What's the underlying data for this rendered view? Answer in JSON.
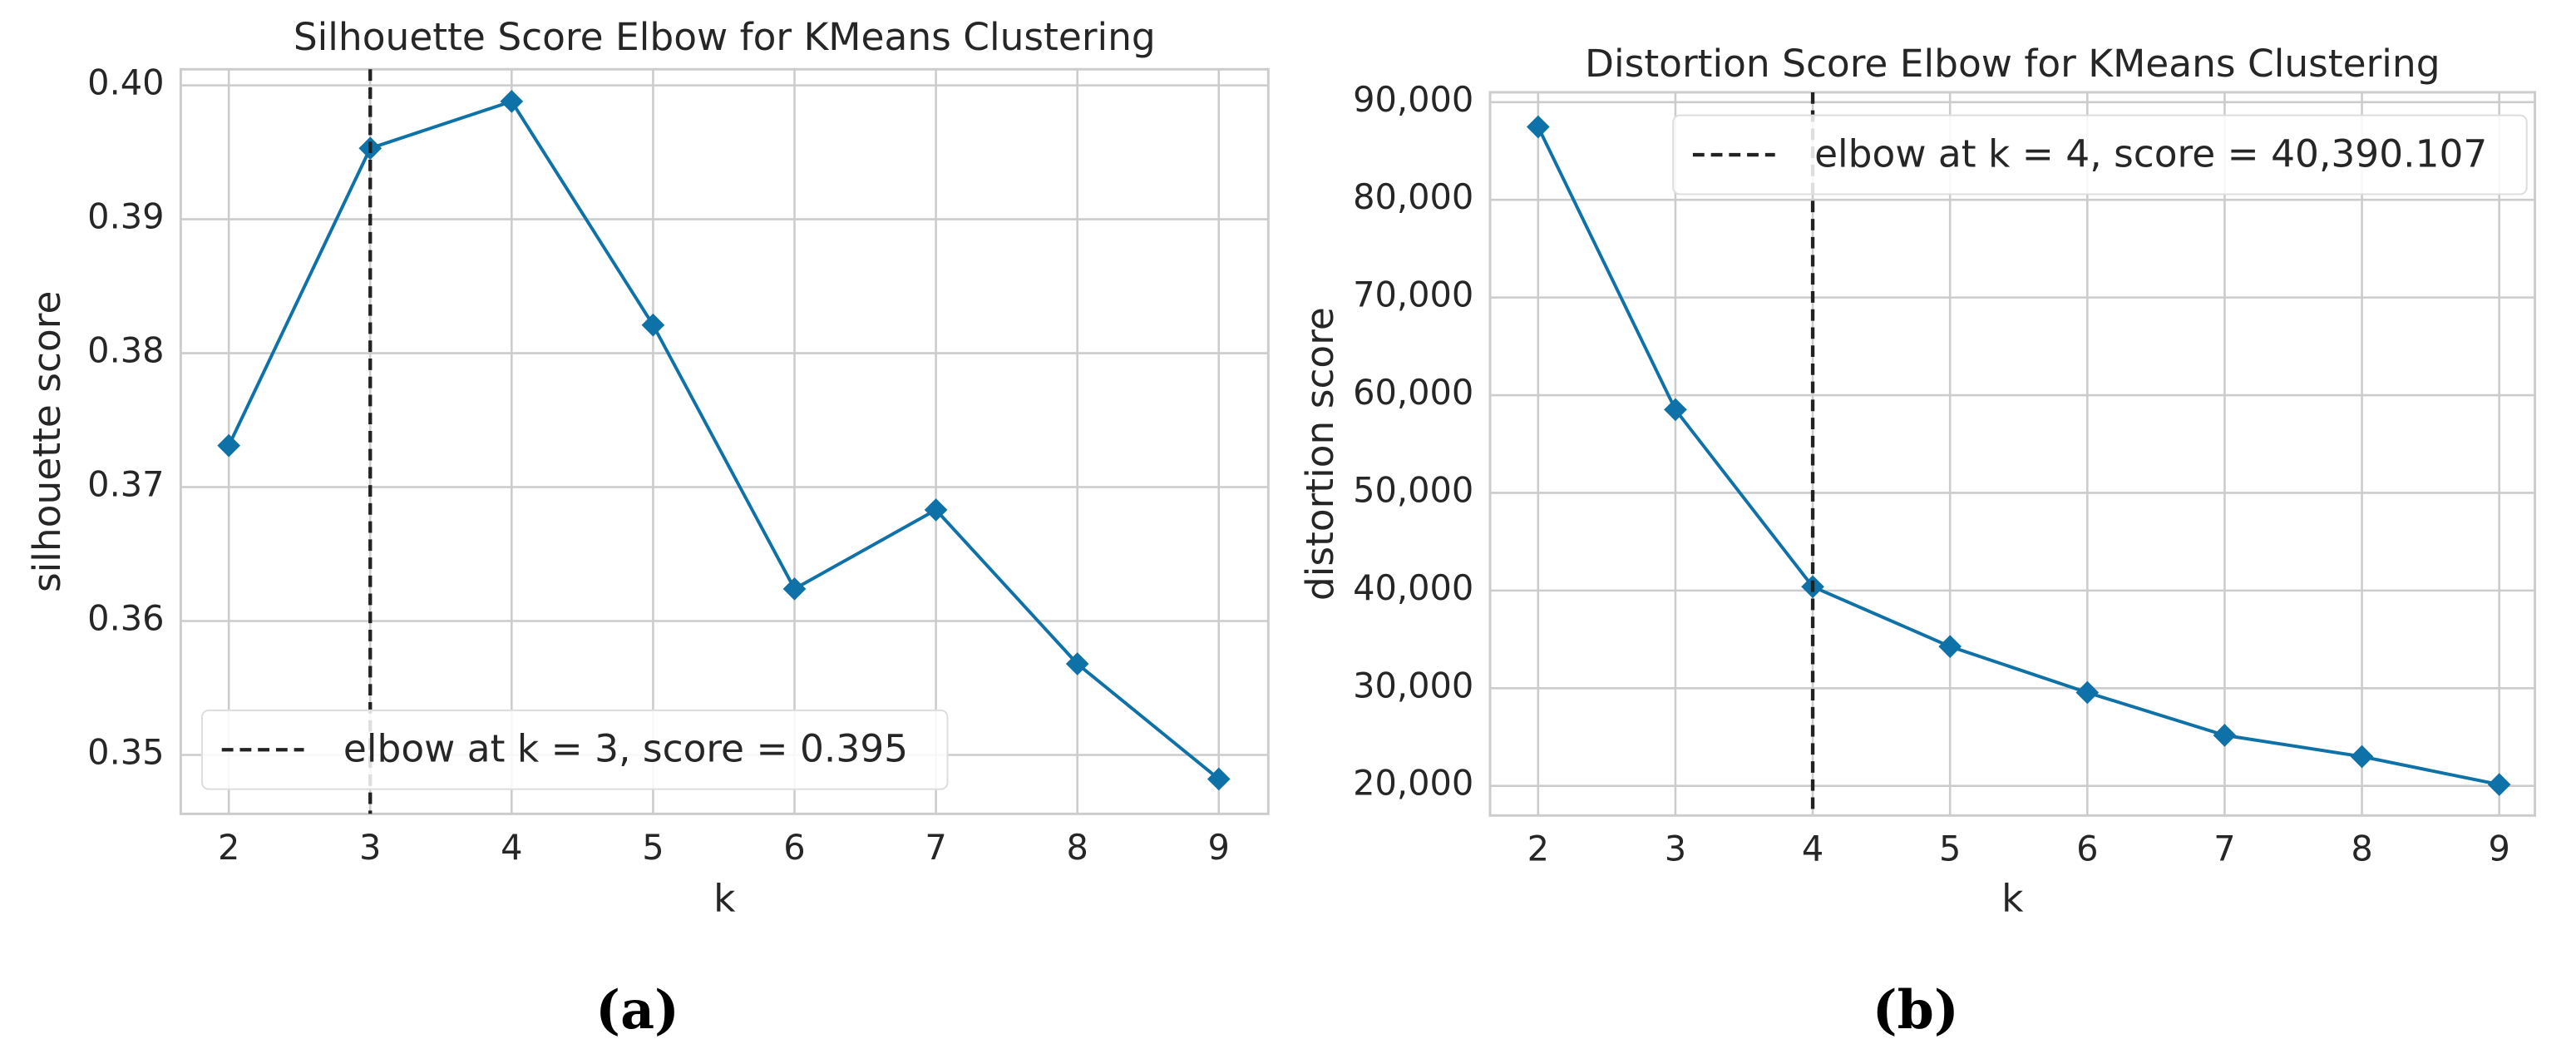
{
  "chart_data": [
    {
      "type": "line",
      "title": "Silhouette Score Elbow for KMeans Clustering",
      "xlabel": "k",
      "ylabel": "silhouette score",
      "caption": "(a)",
      "x": [
        2,
        3,
        4,
        5,
        6,
        7,
        8,
        9
      ],
      "values": [
        0.3731,
        0.3953,
        0.3988,
        0.3821,
        0.3624,
        0.3683,
        0.3568,
        0.3482
      ],
      "color": "#0e72a8",
      "xlim": [
        1.66,
        9.35
      ],
      "xticks": [
        2,
        3,
        4,
        5,
        6,
        7,
        8,
        9
      ],
      "ylim": [
        0.3456,
        0.4012
      ],
      "yticks": [
        {
          "value": 0.35,
          "label": "0.35"
        },
        {
          "value": 0.36,
          "label": "0.36"
        },
        {
          "value": 0.37,
          "label": "0.37"
        },
        {
          "value": 0.38,
          "label": "0.38"
        },
        {
          "value": 0.39,
          "label": "0.39"
        },
        {
          "value": 0.4,
          "label": "0.40"
        }
      ],
      "grid": true,
      "legend": "lower left",
      "elbow": {
        "x": 3,
        "label": "elbow at k = 3, score = 0.395"
      }
    },
    {
      "type": "line",
      "title": "Distortion Score Elbow for KMeans Clustering",
      "xlabel": "k",
      "ylabel": "distortion score",
      "caption": "(b)",
      "x": [
        2,
        3,
        4,
        5,
        6,
        7,
        8,
        9
      ],
      "values": [
        87470,
        58520,
        40390,
        34270,
        29560,
        25180,
        23000,
        20140
      ],
      "color": "#0e72a8",
      "xlim": [
        1.65,
        9.26
      ],
      "xticks": [
        2,
        3,
        4,
        5,
        6,
        7,
        8,
        9
      ],
      "ylim": [
        16970,
        91010
      ],
      "yticks": [
        {
          "value": 20000,
          "label": "20,000"
        },
        {
          "value": 30000,
          "label": "30,000"
        },
        {
          "value": 40000,
          "label": "40,000"
        },
        {
          "value": 50000,
          "label": "50,000"
        },
        {
          "value": 60000,
          "label": "60,000"
        },
        {
          "value": 70000,
          "label": "70,000"
        },
        {
          "value": 80000,
          "label": "80,000"
        },
        {
          "value": 90000,
          "label": "90,000"
        }
      ],
      "grid": true,
      "legend": "upper right",
      "elbow": {
        "x": 4,
        "label": "elbow at k = 4, score = 40,390.107"
      }
    }
  ]
}
